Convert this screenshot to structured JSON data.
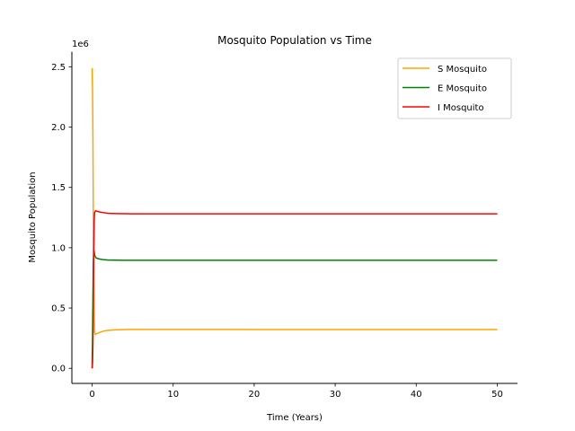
{
  "chart_data": {
    "type": "line",
    "title": "Mosquito Population vs Time",
    "xlabel": "Time (Years)",
    "ylabel": "Mosquito Population",
    "y_multiplier_label": "1e6",
    "xlim": [
      -2.5,
      52.5
    ],
    "ylim": [
      -0.125,
      2.625
    ],
    "x_ticks": [
      0,
      10,
      20,
      30,
      40,
      50
    ],
    "y_ticks": [
      0.0,
      0.5,
      1.0,
      1.5,
      2.0,
      2.5
    ],
    "x_tick_labels": [
      "0",
      "10",
      "20",
      "30",
      "40",
      "50"
    ],
    "y_tick_labels": [
      "0.0",
      "0.5",
      "1.0",
      "1.5",
      "2.0",
      "2.5"
    ],
    "grid": false,
    "legend_position": "top-right",
    "series": [
      {
        "name": "S Mosquito",
        "color": "#ffa500",
        "x": [
          0,
          0.05,
          0.1,
          0.15,
          0.2,
          0.25,
          0.3,
          0.4,
          0.5,
          0.7,
          1,
          1.5,
          2,
          3,
          4,
          5,
          7,
          10,
          20,
          30,
          40,
          50
        ],
        "y": [
          2.49,
          2.3,
          1.9,
          1.2,
          0.65,
          0.4,
          0.3,
          0.28,
          0.285,
          0.29,
          0.3,
          0.31,
          0.315,
          0.32,
          0.322,
          0.323,
          0.323,
          0.323,
          0.322,
          0.322,
          0.322,
          0.322
        ]
      },
      {
        "name": "E Mosquito",
        "color": "#008000",
        "x": [
          0,
          0.05,
          0.1,
          0.15,
          0.2,
          0.25,
          0.3,
          0.4,
          0.5,
          0.7,
          1,
          1.5,
          2,
          3,
          4,
          5,
          10,
          20,
          30,
          40,
          50
        ],
        "y": [
          0.0,
          0.25,
          0.6,
          0.88,
          0.98,
          0.97,
          0.94,
          0.925,
          0.915,
          0.91,
          0.905,
          0.9,
          0.898,
          0.897,
          0.896,
          0.896,
          0.896,
          0.896,
          0.896,
          0.896,
          0.896
        ]
      },
      {
        "name": "I Mosquito",
        "color": "#ff0000",
        "x": [
          0,
          0.05,
          0.1,
          0.15,
          0.2,
          0.25,
          0.3,
          0.4,
          0.5,
          0.7,
          1,
          1.5,
          2,
          3,
          4,
          5,
          10,
          20,
          30,
          40,
          50
        ],
        "y": [
          0.0,
          0.05,
          0.2,
          0.6,
          1.0,
          1.22,
          1.29,
          1.305,
          1.305,
          1.3,
          1.295,
          1.29,
          1.285,
          1.283,
          1.282,
          1.281,
          1.281,
          1.281,
          1.281,
          1.281,
          1.281
        ]
      }
    ]
  }
}
